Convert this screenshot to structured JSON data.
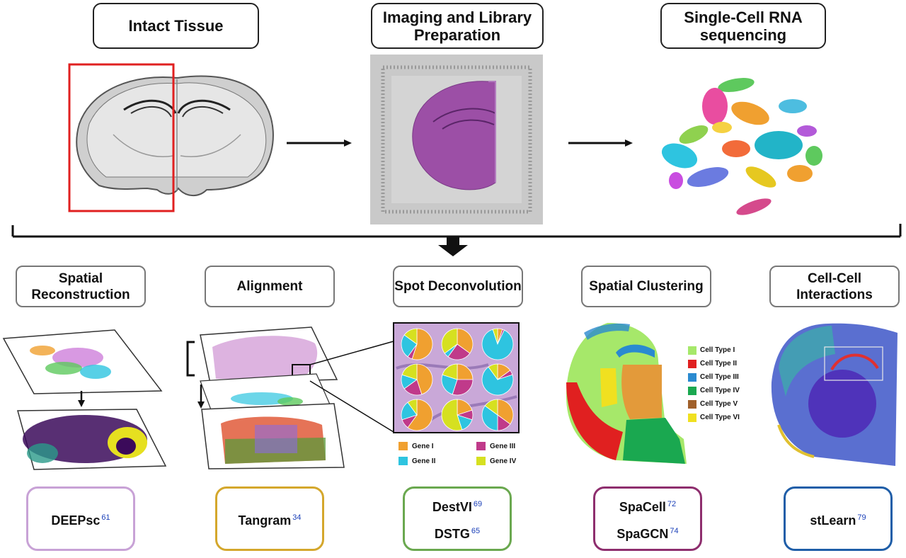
{
  "top_stages": [
    {
      "label": "Intact Tissue"
    },
    {
      "label": "Imaging and Library Preparation"
    },
    {
      "label": "Single-Cell RNA sequencing"
    }
  ],
  "methods": [
    {
      "label": "Spatial Reconstruction"
    },
    {
      "label": "Alignment"
    },
    {
      "label": "Spot Deconvolution"
    },
    {
      "label": "Spatial Clustering"
    },
    {
      "label": "Cell-Cell Interactions"
    }
  ],
  "tools": [
    {
      "color": "#c8a2d6",
      "lines": [
        {
          "name": "DEEPsc",
          "ref": "61"
        }
      ]
    },
    {
      "color": "#d4a72c",
      "lines": [
        {
          "name": "Tangram",
          "ref": "34"
        }
      ]
    },
    {
      "color": "#6aa84f",
      "lines": [
        {
          "name": "DestVI",
          "ref": "69"
        },
        {
          "name": "DSTG",
          "ref": "65"
        }
      ]
    },
    {
      "color": "#8e2e6e",
      "lines": [
        {
          "name": "SpaCell",
          "ref": "72"
        },
        {
          "name": "SpaGCN",
          "ref": "74"
        }
      ]
    },
    {
      "color": "#1f5ea8",
      "lines": [
        {
          "name": "stLearn",
          "ref": "79"
        }
      ]
    }
  ],
  "gene_legend": [
    {
      "label": "Gene I",
      "color": "#f0a030"
    },
    {
      "label": "Gene III",
      "color": "#c03a8a"
    },
    {
      "label": "Gene II",
      "color": "#2ec4e0"
    },
    {
      "label": "Gene IV",
      "color": "#d6e020"
    }
  ],
  "cell_type_legend": [
    {
      "label": "Cell Type I",
      "color": "#a6e86a"
    },
    {
      "label": "Cell Type II",
      "color": "#e02020"
    },
    {
      "label": "Cell Type III",
      "color": "#2a8ad0"
    },
    {
      "label": "Cell Type IV",
      "color": "#1aa850"
    },
    {
      "label": "Cell Type V",
      "color": "#a0602a"
    },
    {
      "label": "Cell Type VI",
      "color": "#f0e020"
    }
  ]
}
